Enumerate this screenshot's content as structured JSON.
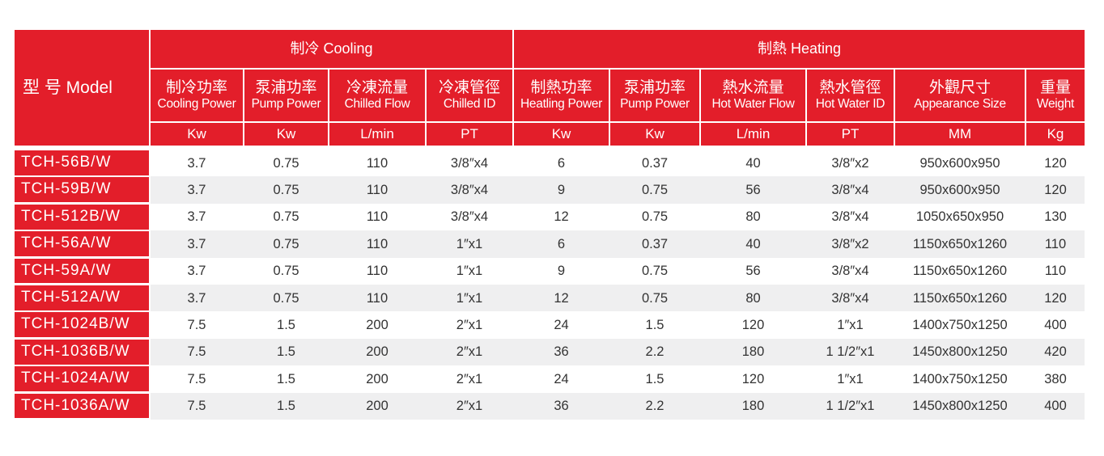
{
  "colors": {
    "accent": "#e31e2a",
    "row_alt": "#efeff0",
    "row": "#ffffff",
    "text": "#333333"
  },
  "model_header": "型 号 Model",
  "groups": [
    {
      "label": "制冷 Cooling"
    },
    {
      "label": "制熱 Heating"
    }
  ],
  "columns": [
    {
      "zh": "制冷功率",
      "en": "Cooling Power",
      "unit": "Kw"
    },
    {
      "zh": "泵浦功率",
      "en": "Pump Power",
      "unit": "Kw"
    },
    {
      "zh": "冷凍流量",
      "en": "Chilled Flow",
      "unit": "L/min"
    },
    {
      "zh": "冷凍管徑",
      "en": "Chilled ID",
      "unit": "PT"
    },
    {
      "zh": "制熱功率",
      "en": "Heatling Power",
      "unit": "Kw"
    },
    {
      "zh": "泵浦功率",
      "en": "Pump Power",
      "unit": "Kw"
    },
    {
      "zh": "熱水流量",
      "en": "Hot Water Flow",
      "unit": "L/min"
    },
    {
      "zh": "熱水管徑",
      "en": "Hot Water ID",
      "unit": "PT"
    },
    {
      "zh": "外觀尺寸",
      "en": "Appearance Size",
      "unit": "MM"
    },
    {
      "zh": "重量",
      "en": "Weight",
      "unit": "Kg"
    }
  ],
  "rows": [
    {
      "model": "TCH-56B/W",
      "values": [
        "3.7",
        "0.75",
        "110",
        "3/8″x4",
        "6",
        "0.37",
        "40",
        "3/8″x2",
        "950x600x950",
        "120"
      ]
    },
    {
      "model": "TCH-59B/W",
      "values": [
        "3.7",
        "0.75",
        "110",
        "3/8″x4",
        "9",
        "0.75",
        "56",
        "3/8″x4",
        "950x600x950",
        "120"
      ]
    },
    {
      "model": "TCH-512B/W",
      "values": [
        "3.7",
        "0.75",
        "110",
        "3/8″x4",
        "12",
        "0.75",
        "80",
        "3/8″x4",
        "1050x650x950",
        "130"
      ]
    },
    {
      "model": "TCH-56A/W",
      "values": [
        "3.7",
        "0.75",
        "110",
        "1″x1",
        "6",
        "0.37",
        "40",
        "3/8″x2",
        "1150x650x1260",
        "110"
      ]
    },
    {
      "model": "TCH-59A/W",
      "values": [
        "3.7",
        "0.75",
        "110",
        "1″x1",
        "9",
        "0.75",
        "56",
        "3/8″x4",
        "1150x650x1260",
        "110"
      ]
    },
    {
      "model": "TCH-512A/W",
      "values": [
        "3.7",
        "0.75",
        "110",
        "1″x1",
        "12",
        "0.75",
        "80",
        "3/8″x4",
        "1150x650x1260",
        "120"
      ]
    },
    {
      "model": "TCH-1024B/W",
      "values": [
        "7.5",
        "1.5",
        "200",
        "2″x1",
        "24",
        "1.5",
        "120",
        "1″x1",
        "1400x750x1250",
        "400"
      ]
    },
    {
      "model": "TCH-1036B/W",
      "values": [
        "7.5",
        "1.5",
        "200",
        "2″x1",
        "36",
        "2.2",
        "180",
        "1 1/2″x1",
        "1450x800x1250",
        "420"
      ]
    },
    {
      "model": "TCH-1024A/W",
      "values": [
        "7.5",
        "1.5",
        "200",
        "2″x1",
        "24",
        "1.5",
        "120",
        "1″x1",
        "1400x750x1250",
        "380"
      ]
    },
    {
      "model": "TCH-1036A/W",
      "values": [
        "7.5",
        "1.5",
        "200",
        "2″x1",
        "36",
        "2.2",
        "180",
        "1 1/2″x1",
        "1450x800x1250",
        "400"
      ]
    }
  ]
}
